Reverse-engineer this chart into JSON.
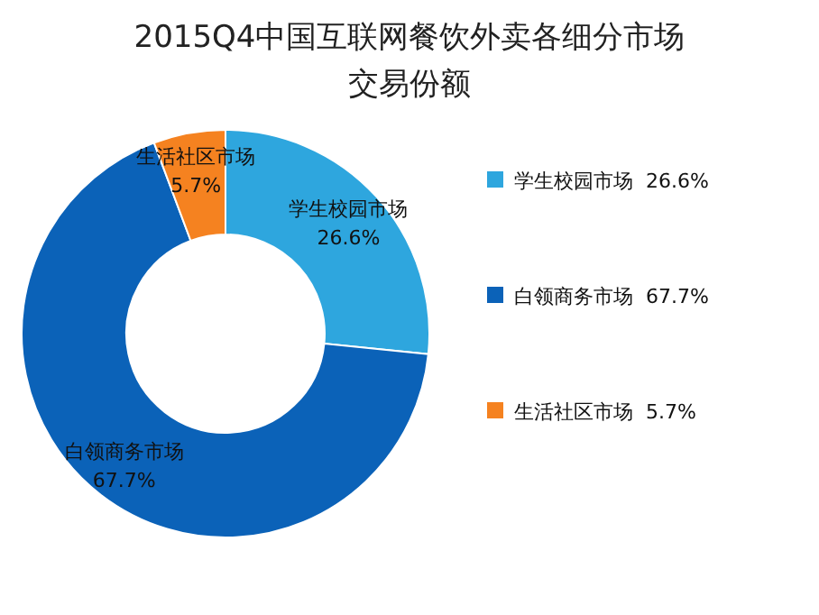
{
  "chart_data": {
    "type": "donut",
    "title": "2015Q4中国互联网餐饮外卖各细分市场",
    "subtitle": "交易份额",
    "categories": [
      "学生校园市场",
      "白领商务市场",
      "生活社区市场"
    ],
    "values": [
      26.6,
      67.7,
      5.7
    ],
    "colors": [
      "#2ea6de",
      "#0b62b8",
      "#f58220"
    ],
    "value_labels": [
      "26.6%",
      "67.7%",
      "5.7%"
    ],
    "legend": "right"
  }
}
